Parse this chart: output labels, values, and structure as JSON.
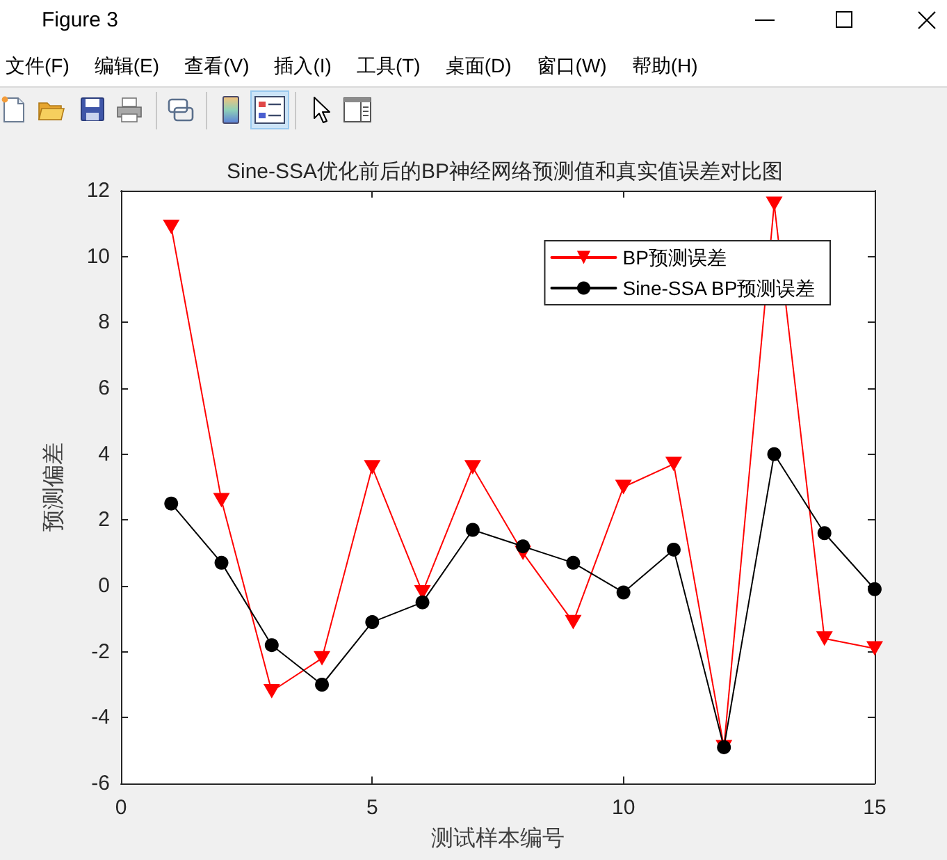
{
  "chart_data": {
    "type": "line",
    "title": "Sine-SSA优化前后的BP神经网络预测值和真实值误差对比图",
    "xlabel": "测试样本编号",
    "ylabel": "预测偏差",
    "x": [
      1,
      2,
      3,
      4,
      5,
      6,
      7,
      8,
      9,
      10,
      11,
      12,
      13,
      14,
      15
    ],
    "series": [
      {
        "name": "BP预测误差",
        "color": "#ff0000",
        "marker": "triangle",
        "values": [
          10.9,
          2.6,
          -3.2,
          -2.2,
          3.6,
          -0.2,
          3.6,
          1.0,
          -1.1,
          3.0,
          3.7,
          -4.9,
          11.6,
          -1.6,
          -1.9
        ]
      },
      {
        "name": "Sine-SSA BP预测误差",
        "color": "#000000",
        "marker": "circle",
        "values": [
          2.5,
          0.7,
          -1.8,
          -3.0,
          -1.1,
          -0.5,
          1.7,
          1.2,
          0.7,
          -0.2,
          1.1,
          -4.9,
          4.0,
          1.6,
          -0.1
        ]
      }
    ],
    "xlim": [
      0,
      15
    ],
    "xticks": [
      0,
      5,
      10,
      15
    ],
    "ylim": [
      -6,
      12
    ],
    "yticks": [
      -6,
      -4,
      -2,
      0,
      2,
      4,
      6,
      8,
      10,
      12
    ],
    "legend": "top right",
    "line_style": "solid",
    "annotations": [
      "Figure 3",
      "文件(F)",
      "编辑(E)",
      "查看(V)",
      "插入(I)",
      "工具(T)",
      "桌面(D)",
      "窗口(W)",
      "帮助(H)"
    ]
  }
}
